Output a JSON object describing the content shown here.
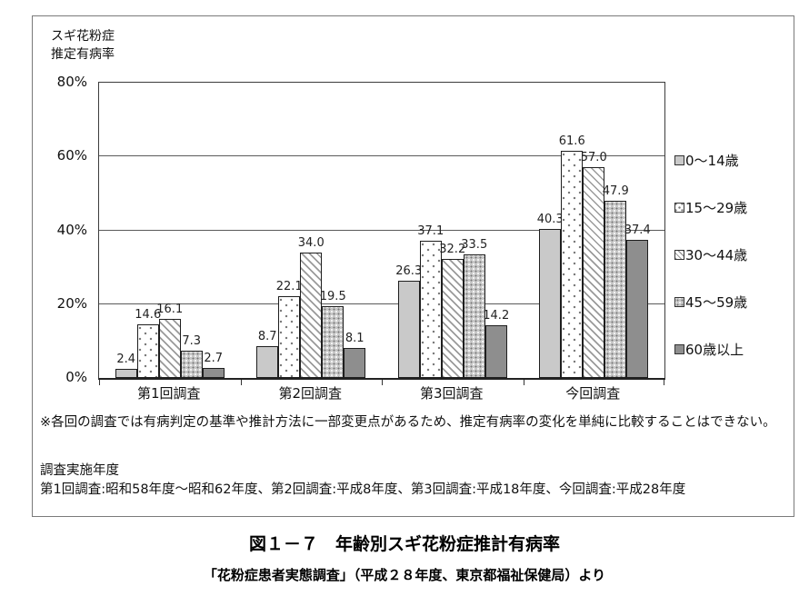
{
  "chart": {
    "axis_title_line1": "スギ花粉症",
    "axis_title_line2": "推定有病率"
  },
  "chart_data": {
    "type": "bar",
    "title": "図１－７　年齢別スギ花粉症推計有病率",
    "categories": [
      "第1回調査",
      "第2回調査",
      "第3回調査",
      "今回調査"
    ],
    "series": [
      {
        "name": "0〜14歳",
        "values": [
          2.4,
          8.7,
          26.3,
          40.3
        ],
        "pattern": "solid-light-gray"
      },
      {
        "name": "15〜29歳",
        "values": [
          14.6,
          22.1,
          37.1,
          61.6
        ],
        "pattern": "dots-on-white"
      },
      {
        "name": "30〜44歳",
        "values": [
          16.1,
          34.0,
          32.2,
          57.0
        ],
        "pattern": "diagonal-hatch"
      },
      {
        "name": "45〜59歳",
        "values": [
          7.3,
          19.5,
          33.5,
          47.9
        ],
        "pattern": "dense-dots-on-gray"
      },
      {
        "name": "60歳以上",
        "values": [
          2.7,
          8.1,
          14.2,
          37.4
        ],
        "pattern": "solid-dark-gray"
      }
    ],
    "ylabel": "スギ花粉症推定有病率",
    "ylim": [
      0,
      80
    ],
    "ytick_labels": [
      "80%",
      "60%",
      "40%",
      "20%",
      "0%"
    ],
    "ytick_values": [
      80,
      60,
      40,
      20,
      0
    ],
    "grid": true,
    "legend_position": "right",
    "colors": {
      "series1_fill": "#c9c9c9",
      "series5_fill": "#8e8e8e",
      "axis": "#3c3c3c",
      "text": "#111111"
    }
  },
  "notes": {
    "caveat": "※各回の調査では有病判定の基準や推計方法に一部変更点があるため、推定有病率の変化を単純に比較することはできない。",
    "years_title": "調査実施年度",
    "years_detail": "第1回調査:昭和58年度～昭和62年度、第2回調査:平成8年度、第3回調査:平成18年度、今回調査:平成28年度"
  },
  "title": "図１－７　年齢別スギ花粉症推計有病率",
  "caption": "「花粉症患者実態調査」（平成２８年度、東京都福祉保健局）より"
}
